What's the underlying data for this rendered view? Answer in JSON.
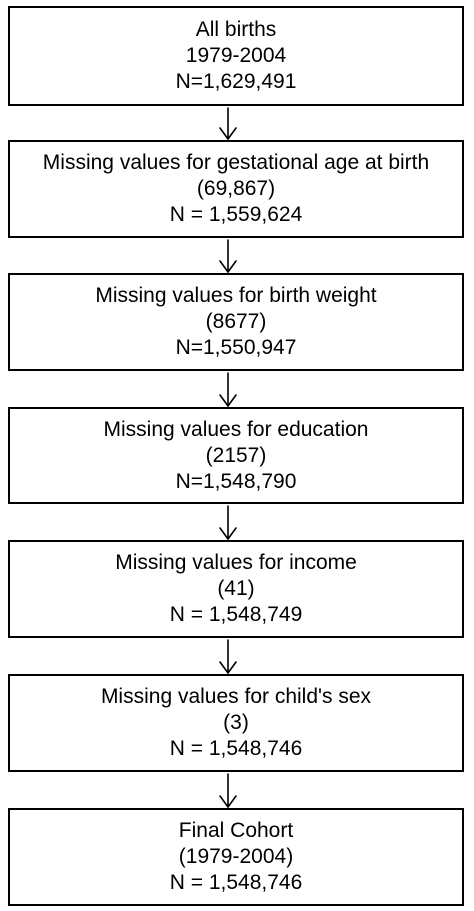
{
  "flowchart": {
    "boxes": [
      {
        "lines": [
          "All births",
          "1979-2004",
          "N=1,629,491"
        ]
      },
      {
        "lines": [
          "Missing values for gestational age at birth",
          "(69,867)",
          "N = 1,559,624"
        ]
      },
      {
        "lines": [
          "Missing values for birth weight",
          "(8677)",
          "N=1,550,947"
        ]
      },
      {
        "lines": [
          "Missing values for education",
          "(2157)",
          "N=1,548,790"
        ]
      },
      {
        "lines": [
          "Missing values for income",
          "(41)",
          "N = 1,548,749"
        ]
      },
      {
        "lines": [
          "Missing values for child's sex",
          "(3)",
          "N = 1,548,746"
        ]
      },
      {
        "lines": [
          "Final Cohort",
          "(1979-2004)",
          "N = 1,548,746"
        ]
      }
    ],
    "connector_color": "#000000",
    "border_color": "#000000"
  }
}
